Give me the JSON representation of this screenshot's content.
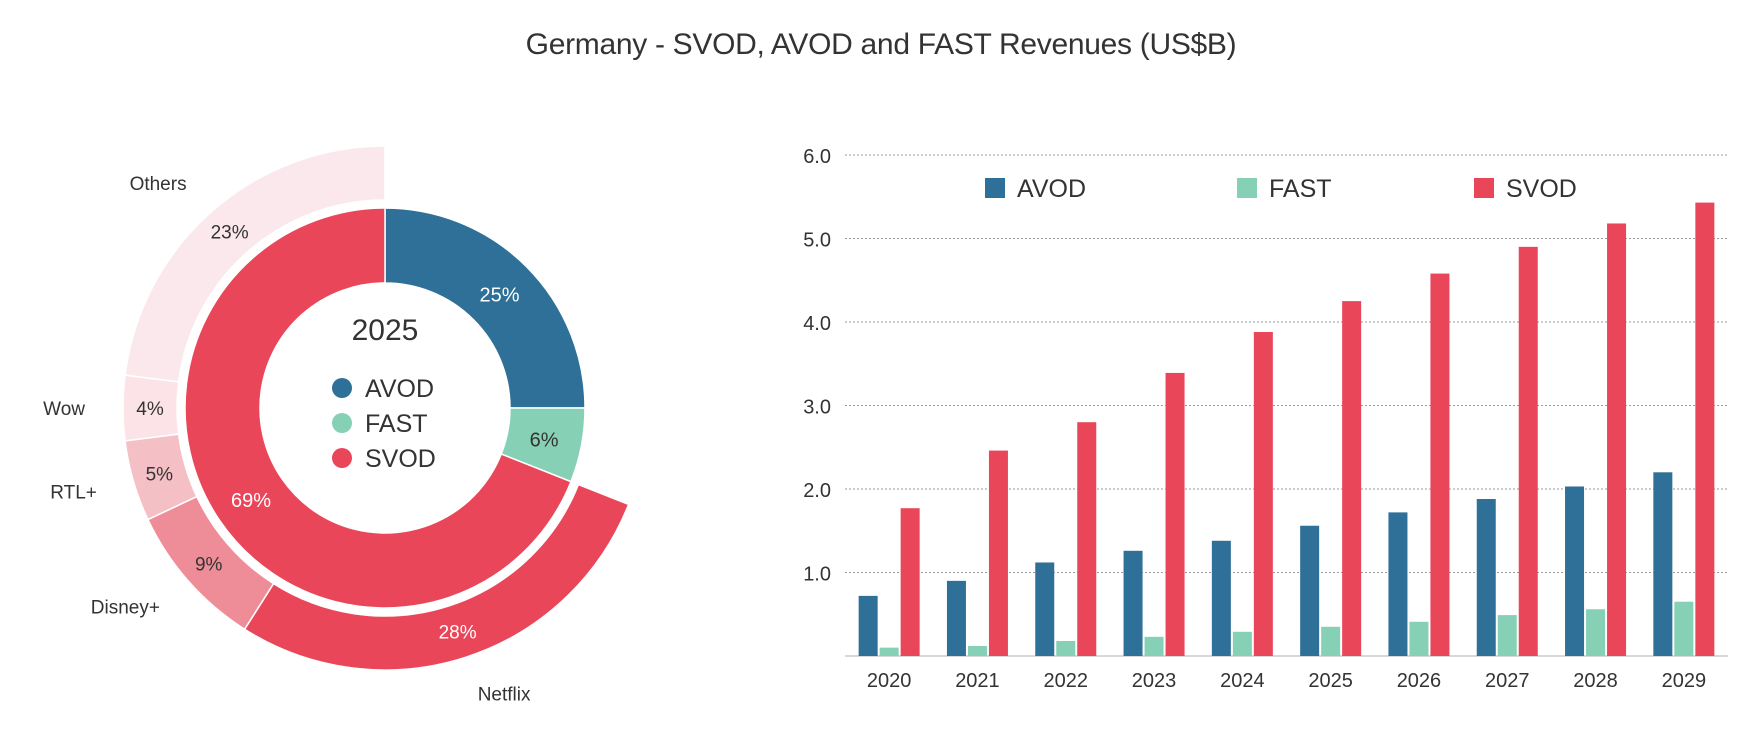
{
  "title": "Germany -  SVOD, AVOD and FAST Revenues (US$B)",
  "chart_data": [
    {
      "type": "pie",
      "center_label": "2025",
      "inner_ring": [
        {
          "name": "AVOD",
          "value": 25,
          "label": "25%",
          "color": "#2e7097"
        },
        {
          "name": "FAST",
          "value": 6,
          "label": "6%",
          "color": "#86d0b6"
        },
        {
          "name": "SVOD",
          "value": 69,
          "label": "69%",
          "color": "#ea4659"
        }
      ],
      "outer_ring": [
        {
          "name": "Netflix",
          "value": 28,
          "label": "28%",
          "color": "#ea4659"
        },
        {
          "name": "Disney+",
          "value": 9,
          "label": "9%",
          "color": "#ee8d97"
        },
        {
          "name": "RTL+",
          "value": 5,
          "label": "5%",
          "color": "#f5bfc6"
        },
        {
          "name": "Wow",
          "value": 4,
          "label": "4%",
          "color": "#fbe3e7"
        },
        {
          "name": "Others",
          "value": 23,
          "label": "23%",
          "color": "#fbe8ec"
        }
      ],
      "legend": [
        "AVOD",
        "FAST",
        "SVOD"
      ]
    },
    {
      "type": "bar",
      "categories": [
        "2020",
        "2021",
        "2022",
        "2023",
        "2024",
        "2025",
        "2026",
        "2027",
        "2028",
        "2029"
      ],
      "series": [
        {
          "name": "AVOD",
          "color": "#2e7097",
          "values": [
            0.72,
            0.9,
            1.12,
            1.26,
            1.38,
            1.56,
            1.72,
            1.88,
            2.03,
            2.2
          ]
        },
        {
          "name": "FAST",
          "color": "#86d0b6",
          "values": [
            0.1,
            0.12,
            0.18,
            0.23,
            0.29,
            0.35,
            0.41,
            0.49,
            0.56,
            0.65
          ]
        },
        {
          "name": "SVOD",
          "color": "#ea4659",
          "values": [
            1.77,
            2.46,
            2.8,
            3.39,
            3.88,
            4.25,
            4.58,
            4.9,
            5.18,
            5.43
          ]
        }
      ],
      "yticks": [
        "1.0",
        "2.0",
        "3.0",
        "4.0",
        "5.0",
        "6.0"
      ],
      "ylim": [
        0,
        6
      ],
      "grid": true,
      "legend_position": "top"
    }
  ]
}
